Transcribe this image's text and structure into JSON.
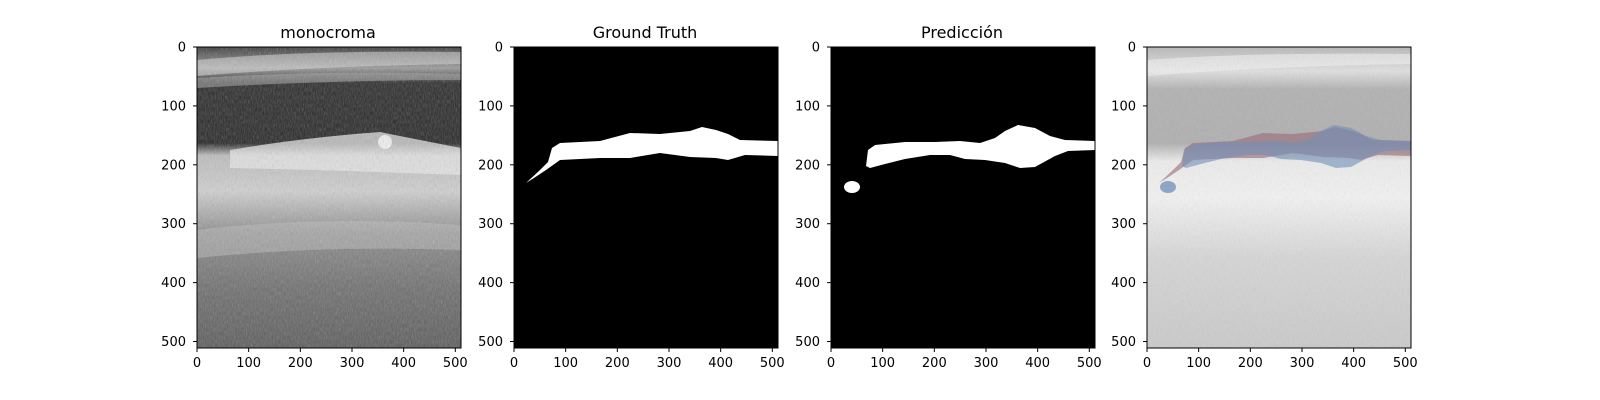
{
  "panels": [
    {
      "title": "monocroma",
      "kind": "grayscale-ultrasound"
    },
    {
      "title": "Ground Truth",
      "kind": "binary-mask"
    },
    {
      "title": "Predicción",
      "kind": "binary-mask"
    },
    {
      "title": "",
      "kind": "overlay"
    }
  ],
  "axes": {
    "x_ticks": [
      "0",
      "100",
      "200",
      "300",
      "400",
      "500"
    ],
    "y_ticks": [
      "0",
      "100",
      "200",
      "300",
      "400",
      "500"
    ],
    "xlim": [
      0,
      511
    ],
    "ylim": [
      511,
      0
    ]
  },
  "colors": {
    "mask_background": "#000000",
    "mask_foreground": "#ffffff",
    "overlay_ground_truth": "#9a6a78",
    "overlay_prediction": "#6f8fb8"
  }
}
